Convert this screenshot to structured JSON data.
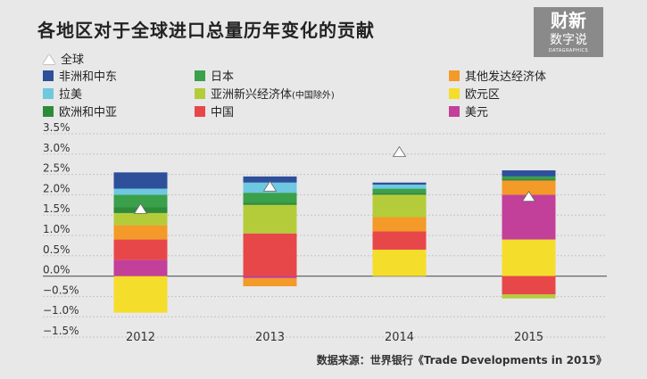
{
  "title": "各地区对于全球进口总量历年变化的贡献",
  "logo": {
    "line1": "财新",
    "line2": "数字说",
    "line3": "DATAGRAPHICS"
  },
  "source": "数据来源：世界银行《Trade Developments in 2015》",
  "legend": [
    {
      "id": "global",
      "label": "全球",
      "shape": "triangle",
      "color": "#ffffff"
    },
    {
      "id": "africa_me",
      "label": "非洲和中东",
      "color": "#2e4f9a"
    },
    {
      "id": "japan",
      "label": "日本",
      "color": "#3aa04a"
    },
    {
      "id": "other_dev",
      "label": "其他发达经济体",
      "color": "#f39a28"
    },
    {
      "id": "latam",
      "label": "拉美",
      "color": "#6ec8e0"
    },
    {
      "id": "asia_em",
      "label": "亚洲新兴经济体",
      "label_small": "(中国除外)",
      "color": "#b5cc3a"
    },
    {
      "id": "euro",
      "label": "欧元区",
      "color": "#f5dd2c"
    },
    {
      "id": "eu_ca",
      "label": "欧洲和中亚",
      "color": "#2e8b3a"
    },
    {
      "id": "china",
      "label": "中国",
      "color": "#e8474a"
    },
    {
      "id": "usd",
      "label": "美元",
      "color": "#c23f9a"
    }
  ],
  "chart_data": {
    "type": "bar",
    "stacked": true,
    "categories": [
      "2012",
      "2013",
      "2014",
      "2015"
    ],
    "ylim": [
      -1.5,
      3.5
    ],
    "yticks": [
      "3.5%",
      "3.0%",
      "2.5%",
      "2.0%",
      "1.5%",
      "1.0%",
      "0.5%",
      "0.0%",
      "−0.5%",
      "−1.0%",
      "−1.5%"
    ],
    "global_marker": [
      1.65,
      2.2,
      3.05,
      1.95
    ],
    "series": [
      {
        "id": "euro",
        "values": [
          -0.9,
          0,
          0.65,
          0.9
        ]
      },
      {
        "id": "usd",
        "values": [
          0.4,
          -0.05,
          0,
          1.1
        ]
      },
      {
        "id": "china",
        "values": [
          0.5,
          1.05,
          0.45,
          -0.45
        ]
      },
      {
        "id": "other_dev",
        "values": [
          0.35,
          -0.2,
          0.35,
          0.35
        ]
      },
      {
        "id": "asia_em",
        "values": [
          0.3,
          0.7,
          0.55,
          -0.1
        ]
      },
      {
        "id": "eu_ca",
        "values": [
          0.15,
          0.05,
          0.05,
          0.05
        ]
      },
      {
        "id": "japan",
        "values": [
          0.3,
          0.25,
          0.1,
          0.05
        ]
      },
      {
        "id": "latam",
        "values": [
          0.15,
          0.25,
          0.1,
          0
        ]
      },
      {
        "id": "africa_me",
        "values": [
          0.4,
          0.15,
          0.05,
          0.15
        ]
      }
    ]
  }
}
